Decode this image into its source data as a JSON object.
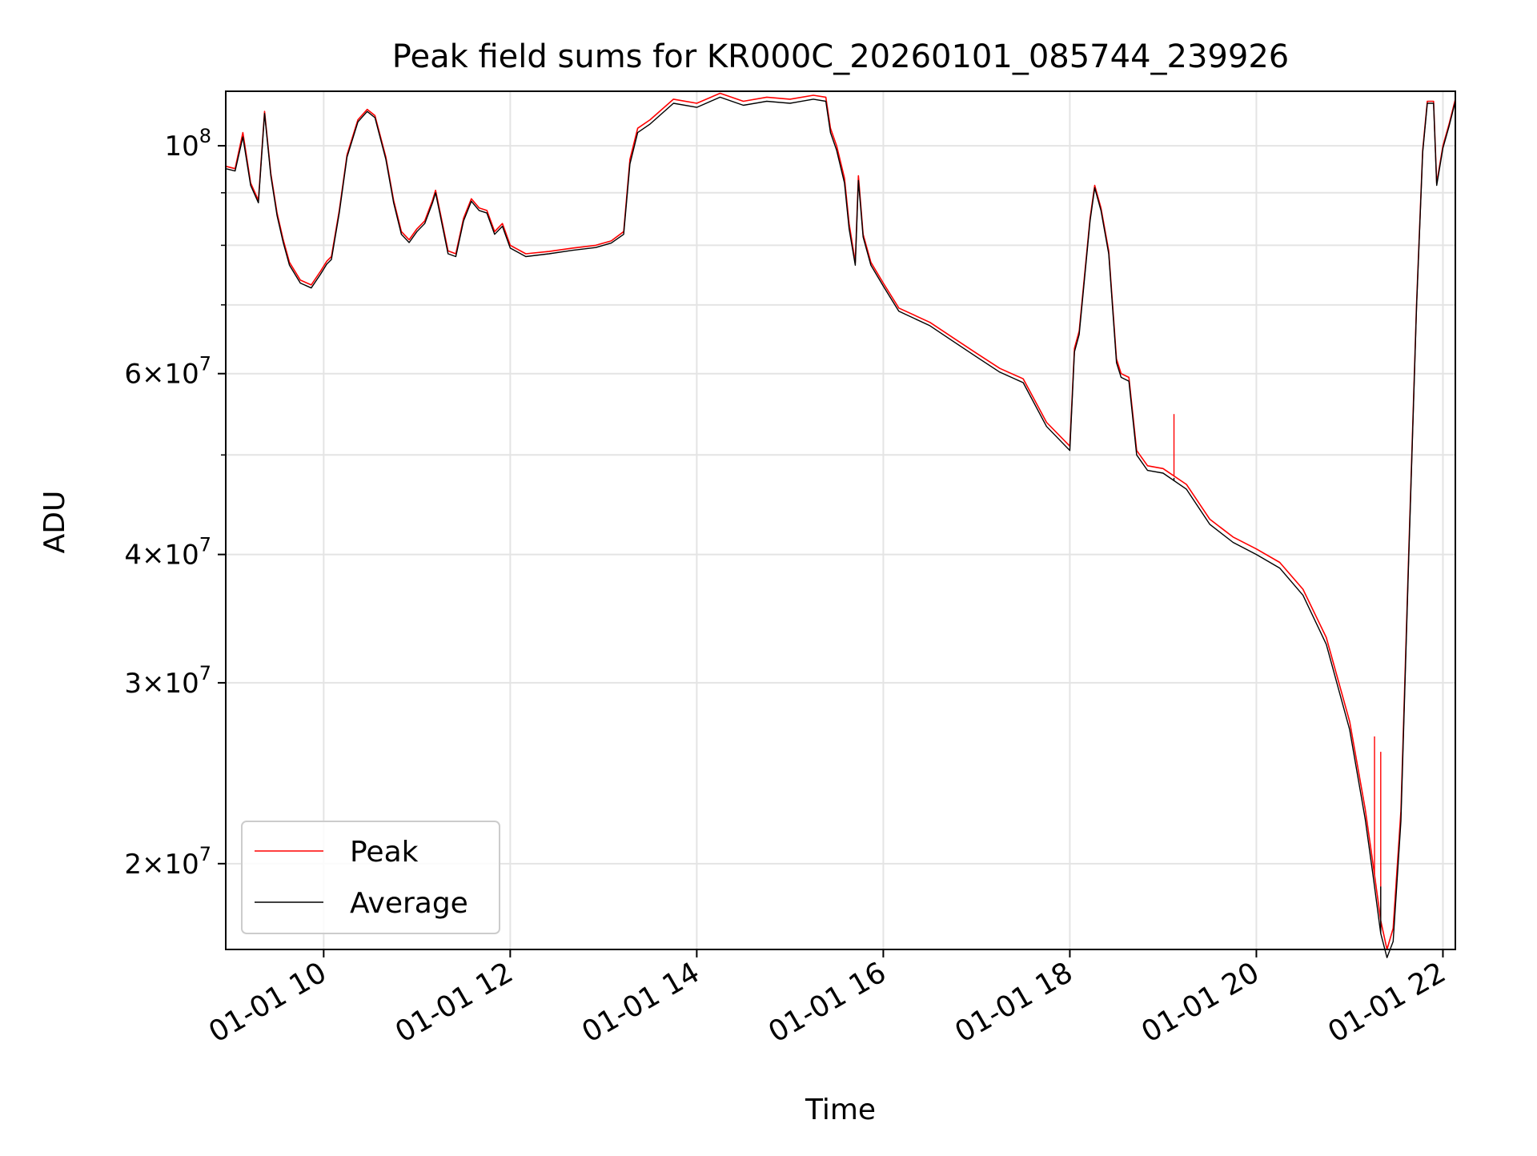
{
  "chart_data": {
    "type": "line",
    "title": "Peak field sums for KR000C_20260101_085744_239926",
    "xlabel": "Time",
    "ylabel": "ADU",
    "x_scale": "time",
    "y_scale": "log",
    "xlim": [
      "2026-01-01 08:57",
      "2026-01-01 22:08"
    ],
    "ylim": [
      16500000,
      113000000
    ],
    "x_ticks": [
      {
        "value": "2026-01-01 10:00",
        "label": "01-01 10"
      },
      {
        "value": "2026-01-01 12:00",
        "label": "01-01 12"
      },
      {
        "value": "2026-01-01 14:00",
        "label": "01-01 14"
      },
      {
        "value": "2026-01-01 16:00",
        "label": "01-01 16"
      },
      {
        "value": "2026-01-01 18:00",
        "label": "01-01 18"
      },
      {
        "value": "2026-01-01 20:00",
        "label": "01-01 20"
      },
      {
        "value": "2026-01-01 22:00",
        "label": "01-01 22"
      }
    ],
    "y_ticks": [
      {
        "value": 20000000,
        "base": "2",
        "exp": "7"
      },
      {
        "value": 30000000,
        "base": "3",
        "exp": "7"
      },
      {
        "value": 40000000,
        "base": "4",
        "exp": "7"
      },
      {
        "value": 60000000,
        "base": "6",
        "exp": "7"
      },
      {
        "value": 100000000,
        "base": "",
        "exp": "8"
      }
    ],
    "y_minor_ticks": [
      50000000,
      70000000,
      80000000,
      90000000
    ],
    "grid": true,
    "legend_position": "lower-left",
    "series": [
      {
        "name": "Peak",
        "color": "#ff0000",
        "points": [
          [
            "2026-01-01 08:57",
            95500000
          ],
          [
            "2026-01-01 09:03",
            95000000
          ],
          [
            "2026-01-01 09:08",
            103000000
          ],
          [
            "2026-01-01 09:13",
            92000000
          ],
          [
            "2026-01-01 09:18",
            88500000
          ],
          [
            "2026-01-01 09:22",
            108000000
          ],
          [
            "2026-01-01 09:26",
            94000000
          ],
          [
            "2026-01-01 09:30",
            86000000
          ],
          [
            "2026-01-01 09:34",
            81000000
          ],
          [
            "2026-01-01 09:38",
            77000000
          ],
          [
            "2026-01-01 09:45",
            74000000
          ],
          [
            "2026-01-01 09:52",
            73200000
          ],
          [
            "2026-01-01 09:58",
            75500000
          ],
          [
            "2026-01-01 10:02",
            77200000
          ],
          [
            "2026-01-01 10:05",
            78000000
          ],
          [
            "2026-01-01 10:10",
            86500000
          ],
          [
            "2026-01-01 10:15",
            98000000
          ],
          [
            "2026-01-01 10:22",
            106000000
          ],
          [
            "2026-01-01 10:28",
            108500000
          ],
          [
            "2026-01-01 10:33",
            107000000
          ],
          [
            "2026-01-01 10:40",
            97500000
          ],
          [
            "2026-01-01 10:45",
            88500000
          ],
          [
            "2026-01-01 10:50",
            82500000
          ],
          [
            "2026-01-01 10:55",
            81000000
          ],
          [
            "2026-01-01 11:00",
            83000000
          ],
          [
            "2026-01-01 11:05",
            84500000
          ],
          [
            "2026-01-01 11:10",
            88500000
          ],
          [
            "2026-01-01 11:12",
            90500000
          ],
          [
            "2026-01-01 11:15",
            86000000
          ],
          [
            "2026-01-01 11:20",
            79000000
          ],
          [
            "2026-01-01 11:25",
            78500000
          ],
          [
            "2026-01-01 11:30",
            85000000
          ],
          [
            "2026-01-01 11:35",
            88800000
          ],
          [
            "2026-01-01 11:40",
            87000000
          ],
          [
            "2026-01-01 11:45",
            86500000
          ],
          [
            "2026-01-01 11:50",
            82500000
          ],
          [
            "2026-01-01 11:55",
            84000000
          ],
          [
            "2026-01-01 12:00",
            80000000
          ],
          [
            "2026-01-01 12:10",
            78500000
          ],
          [
            "2026-01-01 12:25",
            78900000
          ],
          [
            "2026-01-01 12:40",
            79500000
          ],
          [
            "2026-01-01 12:55",
            80000000
          ],
          [
            "2026-01-01 13:05",
            80800000
          ],
          [
            "2026-01-01 13:13",
            82500000
          ],
          [
            "2026-01-01 13:17",
            97000000
          ],
          [
            "2026-01-01 13:22",
            104000000
          ],
          [
            "2026-01-01 13:30",
            106000000
          ],
          [
            "2026-01-01 13:45",
            111000000
          ],
          [
            "2026-01-01 14:00",
            110000000
          ],
          [
            "2026-01-01 14:15",
            112500000
          ],
          [
            "2026-01-01 14:30",
            110500000
          ],
          [
            "2026-01-01 14:45",
            111500000
          ],
          [
            "2026-01-01 15:00",
            111000000
          ],
          [
            "2026-01-01 15:15",
            112000000
          ],
          [
            "2026-01-01 15:23",
            111500000
          ],
          [
            "2026-01-01 15:26",
            104000000
          ],
          [
            "2026-01-01 15:30",
            100000000
          ],
          [
            "2026-01-01 15:35",
            93000000
          ],
          [
            "2026-01-01 15:38",
            84000000
          ],
          [
            "2026-01-01 15:42",
            77000000
          ],
          [
            "2026-01-01 15:44",
            93500000
          ],
          [
            "2026-01-01 15:47",
            82000000
          ],
          [
            "2026-01-01 15:52",
            77000000
          ],
          [
            "2026-01-01 16:00",
            73500000
          ],
          [
            "2026-01-01 16:10",
            69500000
          ],
          [
            "2026-01-01 16:30",
            67300000
          ],
          [
            "2026-01-01 16:45",
            65000000
          ],
          [
            "2026-01-01 17:00",
            62800000
          ],
          [
            "2026-01-01 17:15",
            60700000
          ],
          [
            "2026-01-01 17:30",
            59300000
          ],
          [
            "2026-01-01 17:45",
            53800000
          ],
          [
            "2026-01-01 18:00",
            51000000
          ],
          [
            "2026-01-01 18:03",
            63500000
          ],
          [
            "2026-01-01 18:06",
            66000000
          ],
          [
            "2026-01-01 18:13",
            85000000
          ],
          [
            "2026-01-01 18:16",
            91500000
          ],
          [
            "2026-01-01 18:20",
            87000000
          ],
          [
            "2026-01-01 18:25",
            79000000
          ],
          [
            "2026-01-01 18:30",
            62000000
          ],
          [
            "2026-01-01 18:33",
            60000000
          ],
          [
            "2026-01-01 18:38",
            59500000
          ],
          [
            "2026-01-01 18:43",
            50500000
          ],
          [
            "2026-01-01 18:50",
            48800000
          ],
          [
            "2026-01-01 19:00",
            48500000
          ],
          [
            "2026-01-01 19:15",
            46800000
          ],
          [
            "2026-01-01 19:30",
            43300000
          ],
          [
            "2026-01-01 19:45",
            41600000
          ],
          [
            "2026-01-01 20:00",
            40500000
          ],
          [
            "2026-01-01 20:15",
            39300000
          ],
          [
            "2026-01-01 20:30",
            37000000
          ],
          [
            "2026-01-01 20:45",
            33200000
          ],
          [
            "2026-01-01 21:00",
            27500000
          ],
          [
            "2026-01-01 21:10",
            22600000
          ],
          [
            "2026-01-01 21:15",
            20000000
          ],
          [
            "2026-01-01 21:20",
            17600000
          ],
          [
            "2026-01-01 21:24",
            16500000
          ],
          [
            "2026-01-01 21:28",
            17300000
          ],
          [
            "2026-01-01 21:33",
            22500000
          ],
          [
            "2026-01-01 21:38",
            40000000
          ],
          [
            "2026-01-01 21:43",
            70000000
          ],
          [
            "2026-01-01 21:47",
            99000000
          ],
          [
            "2026-01-01 21:50",
            110500000
          ],
          [
            "2026-01-01 21:54",
            110500000
          ],
          [
            "2026-01-01 21:56",
            92000000
          ],
          [
            "2026-01-01 22:00",
            100000000
          ],
          [
            "2026-01-01 22:04",
            105000000
          ],
          [
            "2026-01-01 22:08",
            111000000
          ]
        ],
        "spikes": [
          [
            "2026-01-01 19:07",
            54800000
          ],
          [
            "2026-01-01 21:16",
            26600000
          ],
          [
            "2026-01-01 21:20",
            25700000
          ]
        ]
      },
      {
        "name": "Average",
        "color": "#000000",
        "points": [
          [
            "2026-01-01 08:57",
            95000000
          ],
          [
            "2026-01-01 09:03",
            94500000
          ],
          [
            "2026-01-01 09:08",
            102000000
          ],
          [
            "2026-01-01 09:13",
            91500000
          ],
          [
            "2026-01-01 09:18",
            88000000
          ],
          [
            "2026-01-01 09:22",
            107500000
          ],
          [
            "2026-01-01 09:26",
            93500000
          ],
          [
            "2026-01-01 09:30",
            85500000
          ],
          [
            "2026-01-01 09:34",
            80500000
          ],
          [
            "2026-01-01 09:38",
            76500000
          ],
          [
            "2026-01-01 09:45",
            73500000
          ],
          [
            "2026-01-01 09:52",
            72700000
          ],
          [
            "2026-01-01 09:58",
            75000000
          ],
          [
            "2026-01-01 10:02",
            76700000
          ],
          [
            "2026-01-01 10:05",
            77500000
          ],
          [
            "2026-01-01 10:10",
            86000000
          ],
          [
            "2026-01-01 10:15",
            97500000
          ],
          [
            "2026-01-01 10:22",
            105500000
          ],
          [
            "2026-01-01 10:28",
            108000000
          ],
          [
            "2026-01-01 10:33",
            106500000
          ],
          [
            "2026-01-01 10:40",
            97000000
          ],
          [
            "2026-01-01 10:45",
            88000000
          ],
          [
            "2026-01-01 10:50",
            82000000
          ],
          [
            "2026-01-01 10:55",
            80500000
          ],
          [
            "2026-01-01 11:00",
            82500000
          ],
          [
            "2026-01-01 11:05",
            84000000
          ],
          [
            "2026-01-01 11:10",
            88000000
          ],
          [
            "2026-01-01 11:12",
            90000000
          ],
          [
            "2026-01-01 11:15",
            85500000
          ],
          [
            "2026-01-01 11:20",
            78500000
          ],
          [
            "2026-01-01 11:25",
            78000000
          ],
          [
            "2026-01-01 11:30",
            84500000
          ],
          [
            "2026-01-01 11:35",
            88300000
          ],
          [
            "2026-01-01 11:40",
            86500000
          ],
          [
            "2026-01-01 11:45",
            86000000
          ],
          [
            "2026-01-01 11:50",
            82000000
          ],
          [
            "2026-01-01 11:55",
            83500000
          ],
          [
            "2026-01-01 12:00",
            79500000
          ],
          [
            "2026-01-01 12:10",
            78000000
          ],
          [
            "2026-01-01 12:25",
            78500000
          ],
          [
            "2026-01-01 12:40",
            79100000
          ],
          [
            "2026-01-01 12:55",
            79600000
          ],
          [
            "2026-01-01 13:05",
            80400000
          ],
          [
            "2026-01-01 13:13",
            82000000
          ],
          [
            "2026-01-01 13:17",
            96000000
          ],
          [
            "2026-01-01 13:22",
            103000000
          ],
          [
            "2026-01-01 13:30",
            105000000
          ],
          [
            "2026-01-01 13:45",
            110000000
          ],
          [
            "2026-01-01 14:00",
            109000000
          ],
          [
            "2026-01-01 14:15",
            111500000
          ],
          [
            "2026-01-01 14:30",
            109500000
          ],
          [
            "2026-01-01 14:45",
            110500000
          ],
          [
            "2026-01-01 15:00",
            110000000
          ],
          [
            "2026-01-01 15:15",
            111000000
          ],
          [
            "2026-01-01 15:23",
            110500000
          ],
          [
            "2026-01-01 15:26",
            103000000
          ],
          [
            "2026-01-01 15:30",
            99000000
          ],
          [
            "2026-01-01 15:35",
            92000000
          ],
          [
            "2026-01-01 15:38",
            83000000
          ],
          [
            "2026-01-01 15:42",
            76500000
          ],
          [
            "2026-01-01 15:44",
            92500000
          ],
          [
            "2026-01-01 15:47",
            81500000
          ],
          [
            "2026-01-01 15:52",
            76500000
          ],
          [
            "2026-01-01 16:00",
            73000000
          ],
          [
            "2026-01-01 16:10",
            69000000
          ],
          [
            "2026-01-01 16:30",
            66800000
          ],
          [
            "2026-01-01 16:45",
            64500000
          ],
          [
            "2026-01-01 17:00",
            62300000
          ],
          [
            "2026-01-01 17:15",
            60200000
          ],
          [
            "2026-01-01 17:30",
            58800000
          ],
          [
            "2026-01-01 17:45",
            53300000
          ],
          [
            "2026-01-01 18:00",
            50500000
          ],
          [
            "2026-01-01 18:03",
            63000000
          ],
          [
            "2026-01-01 18:06",
            65500000
          ],
          [
            "2026-01-01 18:13",
            84500000
          ],
          [
            "2026-01-01 18:16",
            91000000
          ],
          [
            "2026-01-01 18:20",
            86500000
          ],
          [
            "2026-01-01 18:25",
            78500000
          ],
          [
            "2026-01-01 18:30",
            61500000
          ],
          [
            "2026-01-01 18:33",
            59500000
          ],
          [
            "2026-01-01 18:38",
            59000000
          ],
          [
            "2026-01-01 18:43",
            50000000
          ],
          [
            "2026-01-01 18:50",
            48300000
          ],
          [
            "2026-01-01 19:00",
            48000000
          ],
          [
            "2026-01-01 19:15",
            46300000
          ],
          [
            "2026-01-01 19:30",
            42800000
          ],
          [
            "2026-01-01 19:45",
            41100000
          ],
          [
            "2026-01-01 20:00",
            40000000
          ],
          [
            "2026-01-01 20:15",
            38800000
          ],
          [
            "2026-01-01 20:30",
            36500000
          ],
          [
            "2026-01-01 20:45",
            32700000
          ],
          [
            "2026-01-01 21:00",
            27000000
          ],
          [
            "2026-01-01 21:10",
            22100000
          ],
          [
            "2026-01-01 21:15",
            19500000
          ],
          [
            "2026-01-01 21:20",
            17100000
          ],
          [
            "2026-01-01 21:24",
            16200000
          ],
          [
            "2026-01-01 21:28",
            16800000
          ],
          [
            "2026-01-01 21:33",
            22000000
          ],
          [
            "2026-01-01 21:38",
            39500000
          ],
          [
            "2026-01-01 21:43",
            69500000
          ],
          [
            "2026-01-01 21:47",
            98500000
          ],
          [
            "2026-01-01 21:50",
            110000000
          ],
          [
            "2026-01-01 21:54",
            110000000
          ],
          [
            "2026-01-01 21:56",
            91500000
          ],
          [
            "2026-01-01 22:00",
            99500000
          ],
          [
            "2026-01-01 22:04",
            104500000
          ],
          [
            "2026-01-01 22:08",
            110500000
          ]
        ],
        "spikes": [
          [
            "2026-01-01 19:07",
            47500000
          ],
          [
            "2026-01-01 21:20",
            19000000
          ]
        ]
      }
    ]
  }
}
